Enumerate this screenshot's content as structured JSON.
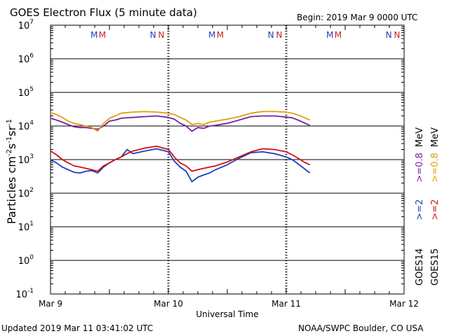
{
  "chart_data": {
    "type": "line",
    "title": "GOES Electron Flux (5 minute data)",
    "begin_label": "Begin: 2019 Mar 9 0000 UTC",
    "xlabel": "Universal Time",
    "ylabel_base": "Particles cm",
    "ylabel_exp1": "-2",
    "ylabel_mid": "s",
    "ylabel_exp2": "-1",
    "ylabel_mid2": "sr",
    "ylabel_exp3": "-1",
    "updated": "Updated 2019 Mar 11 03:41:02 UTC",
    "credit": "NOAA/SWPC Boulder, CO USA",
    "x_unit": "days since 2019 Mar 9 00:00 UTC",
    "xlim": [
      0,
      3
    ],
    "x_ticks": [
      {
        "value": 0,
        "label": "Mar 9"
      },
      {
        "value": 1,
        "label": "Mar 10"
      },
      {
        "value": 2,
        "label": "Mar 11"
      },
      {
        "value": 3,
        "label": "Mar 12"
      }
    ],
    "y_scale": "log",
    "ylim_exponents": [
      -1,
      7
    ],
    "y_ticks": [
      {
        "exp": -1,
        "mant": "10",
        "sup": "-1"
      },
      {
        "exp": 0,
        "mant": "10",
        "sup": "0"
      },
      {
        "exp": 1,
        "mant": "10",
        "sup": "1"
      },
      {
        "exp": 2,
        "mant": "10",
        "sup": "2"
      },
      {
        "exp": 3,
        "mant": "10",
        "sup": "3"
      },
      {
        "exp": 4,
        "mant": "10",
        "sup": "4"
      },
      {
        "exp": 5,
        "mant": "10",
        "sup": "5"
      },
      {
        "exp": 6,
        "mant": "10",
        "sup": "6"
      },
      {
        "exp": 7,
        "mant": "10",
        "sup": "7"
      }
    ],
    "threshold": {
      "value": 1000,
      "style": "dashed"
    },
    "markers": [
      {
        "text": "M",
        "x": 0.37,
        "color": "#2040c0"
      },
      {
        "text": "M",
        "x": 0.44,
        "color": "#d02020"
      },
      {
        "text": "N",
        "x": 0.87,
        "color": "#2040c0"
      },
      {
        "text": "N",
        "x": 0.94,
        "color": "#d02020"
      },
      {
        "text": "M",
        "x": 1.37,
        "color": "#2040c0"
      },
      {
        "text": "M",
        "x": 1.44,
        "color": "#d02020"
      },
      {
        "text": "N",
        "x": 1.87,
        "color": "#2040c0"
      },
      {
        "text": "N",
        "x": 1.94,
        "color": "#d02020"
      },
      {
        "text": "M",
        "x": 2.37,
        "color": "#2040c0"
      },
      {
        "text": "M",
        "x": 2.44,
        "color": "#d02020"
      },
      {
        "text": "N",
        "x": 2.87,
        "color": "#2040c0"
      },
      {
        "text": "N",
        "x": 2.94,
        "color": "#d02020"
      }
    ],
    "series": [
      {
        "name": "GOES14 >=0.8 MeV",
        "color": "#7a1fa0",
        "points": [
          [
            0.0,
            17000
          ],
          [
            0.05,
            15000
          ],
          [
            0.1,
            13000
          ],
          [
            0.15,
            11000
          ],
          [
            0.2,
            9500
          ],
          [
            0.25,
            9000
          ],
          [
            0.3,
            9000
          ],
          [
            0.35,
            8500
          ],
          [
            0.4,
            8000
          ],
          [
            0.45,
            10000
          ],
          [
            0.5,
            14000
          ],
          [
            0.55,
            15000
          ],
          [
            0.6,
            17000
          ],
          [
            0.7,
            18000
          ],
          [
            0.8,
            19000
          ],
          [
            0.9,
            20000
          ],
          [
            1.0,
            18000
          ],
          [
            1.05,
            16000
          ],
          [
            1.1,
            12000
          ],
          [
            1.15,
            10000
          ],
          [
            1.2,
            7000
          ],
          [
            1.25,
            9000
          ],
          [
            1.3,
            8500
          ],
          [
            1.35,
            10000
          ],
          [
            1.4,
            10500
          ],
          [
            1.5,
            12000
          ],
          [
            1.6,
            15000
          ],
          [
            1.7,
            19000
          ],
          [
            1.8,
            20000
          ],
          [
            1.9,
            20000
          ],
          [
            2.0,
            18500
          ],
          [
            2.05,
            17500
          ],
          [
            2.1,
            15000
          ],
          [
            2.15,
            12500
          ],
          [
            2.2,
            10500
          ]
        ]
      },
      {
        "name": "GOES15 >=0.8 MeV",
        "color": "#e0a010",
        "points": [
          [
            0.0,
            25000
          ],
          [
            0.05,
            22000
          ],
          [
            0.1,
            18000
          ],
          [
            0.15,
            14000
          ],
          [
            0.2,
            12000
          ],
          [
            0.25,
            11000
          ],
          [
            0.3,
            10000
          ],
          [
            0.35,
            9000
          ],
          [
            0.4,
            7000
          ],
          [
            0.45,
            12000
          ],
          [
            0.5,
            17000
          ],
          [
            0.55,
            20000
          ],
          [
            0.6,
            24000
          ],
          [
            0.7,
            26000
          ],
          [
            0.8,
            27000
          ],
          [
            0.9,
            26000
          ],
          [
            1.0,
            24000
          ],
          [
            1.05,
            22000
          ],
          [
            1.1,
            18000
          ],
          [
            1.15,
            15000
          ],
          [
            1.2,
            11000
          ],
          [
            1.25,
            12000
          ],
          [
            1.3,
            11000
          ],
          [
            1.35,
            13000
          ],
          [
            1.4,
            14000
          ],
          [
            1.5,
            16000
          ],
          [
            1.6,
            19000
          ],
          [
            1.7,
            24000
          ],
          [
            1.8,
            27000
          ],
          [
            1.9,
            27000
          ],
          [
            2.0,
            26000
          ],
          [
            2.05,
            24000
          ],
          [
            2.1,
            21000
          ],
          [
            2.15,
            18000
          ],
          [
            2.2,
            15000
          ]
        ]
      },
      {
        "name": "GOES14 >=2 MeV",
        "color": "#1a3fbf",
        "points": [
          [
            0.0,
            1000
          ],
          [
            0.05,
            800
          ],
          [
            0.1,
            600
          ],
          [
            0.15,
            500
          ],
          [
            0.2,
            420
          ],
          [
            0.25,
            400
          ],
          [
            0.3,
            450
          ],
          [
            0.35,
            470
          ],
          [
            0.4,
            400
          ],
          [
            0.45,
            600
          ],
          [
            0.5,
            800
          ],
          [
            0.55,
            1000
          ],
          [
            0.6,
            1200
          ],
          [
            0.65,
            2000
          ],
          [
            0.7,
            1500
          ],
          [
            0.8,
            1800
          ],
          [
            0.9,
            2100
          ],
          [
            1.0,
            1700
          ],
          [
            1.05,
            900
          ],
          [
            1.1,
            600
          ],
          [
            1.15,
            450
          ],
          [
            1.2,
            220
          ],
          [
            1.25,
            300
          ],
          [
            1.3,
            350
          ],
          [
            1.35,
            400
          ],
          [
            1.4,
            500
          ],
          [
            1.5,
            700
          ],
          [
            1.6,
            1100
          ],
          [
            1.7,
            1600
          ],
          [
            1.8,
            1700
          ],
          [
            1.9,
            1500
          ],
          [
            2.0,
            1200
          ],
          [
            2.05,
            1000
          ],
          [
            2.1,
            750
          ],
          [
            2.15,
            550
          ],
          [
            2.2,
            400
          ]
        ]
      },
      {
        "name": "GOES15 >=2 MeV",
        "color": "#d01010",
        "points": [
          [
            0.0,
            1800
          ],
          [
            0.05,
            1400
          ],
          [
            0.1,
            1000
          ],
          [
            0.15,
            800
          ],
          [
            0.2,
            650
          ],
          [
            0.25,
            600
          ],
          [
            0.3,
            550
          ],
          [
            0.35,
            500
          ],
          [
            0.4,
            450
          ],
          [
            0.45,
            650
          ],
          [
            0.5,
            800
          ],
          [
            0.55,
            1000
          ],
          [
            0.6,
            1200
          ],
          [
            0.65,
            1500
          ],
          [
            0.7,
            1800
          ],
          [
            0.8,
            2200
          ],
          [
            0.9,
            2500
          ],
          [
            1.0,
            2000
          ],
          [
            1.05,
            1200
          ],
          [
            1.1,
            800
          ],
          [
            1.15,
            650
          ],
          [
            1.2,
            450
          ],
          [
            1.25,
            500
          ],
          [
            1.3,
            550
          ],
          [
            1.35,
            600
          ],
          [
            1.4,
            650
          ],
          [
            1.5,
            850
          ],
          [
            1.6,
            1200
          ],
          [
            1.7,
            1700
          ],
          [
            1.8,
            2100
          ],
          [
            1.9,
            2000
          ],
          [
            2.0,
            1700
          ],
          [
            2.05,
            1400
          ],
          [
            2.1,
            1100
          ],
          [
            2.15,
            850
          ],
          [
            2.2,
            700
          ]
        ]
      }
    ],
    "legend": [
      {
        "prefix": "GOES14",
        "label1": ">=2",
        "label2": ">=0.8",
        "unit": "MeV",
        "color1": "#1a3fbf",
        "color2": "#7a1fa0"
      },
      {
        "prefix": "GOES15",
        "label1": ">=2",
        "label2": ">=0.8",
        "unit": "MeV",
        "color1": "#d01010",
        "color2": "#e0a010"
      }
    ]
  }
}
